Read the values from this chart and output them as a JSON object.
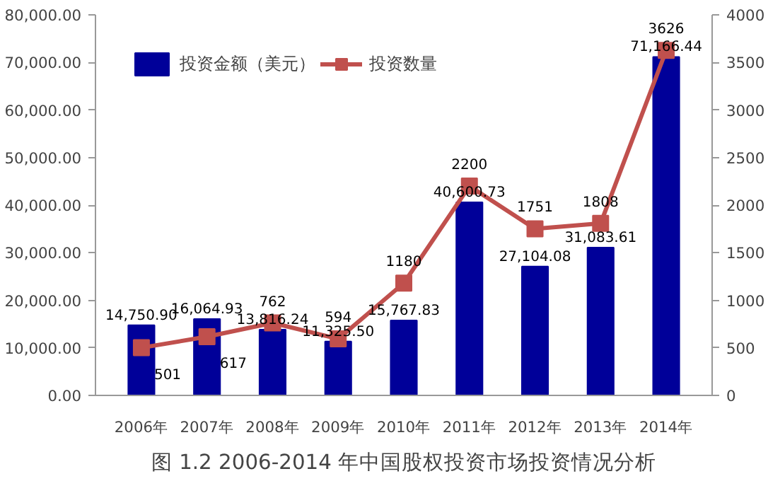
{
  "chart_data": {
    "type": "bar",
    "title": "图 1.2 2006-2014 年中国股权投资市场投资情况分析",
    "categories": [
      "2006年",
      "2007年",
      "2008年",
      "2009年",
      "2010年",
      "2011年",
      "2012年",
      "2013年",
      "2014年"
    ],
    "series": [
      {
        "name": "投资金额（美元）",
        "color": "#000099",
        "values": [
          14750.9,
          16064.93,
          13816.24,
          11325.5,
          15767.83,
          40600.73,
          27104.08,
          31083.61,
          71166.44
        ],
        "value_labels": [
          "14,750.90",
          "16,064.93",
          "13,816.24",
          "11,325.50",
          "15,767.83",
          "40,600.73",
          "27,104.08",
          "31,083.61",
          "71,166.44"
        ]
      },
      {
        "name": "投资数量",
        "type": "line",
        "axis": "y2",
        "color": "#c0504d",
        "marker": "square",
        "values": [
          501,
          617,
          762,
          594,
          1180,
          2200,
          1751,
          1808,
          3626
        ],
        "value_labels": [
          "501",
          "617",
          "762",
          "594",
          "1180",
          "2200",
          "1751",
          "1808",
          "3626"
        ]
      }
    ],
    "ylim": [
      0,
      80000
    ],
    "yticks": [
      {
        "value": 0,
        "label": "0.00"
      },
      {
        "value": 10000,
        "label": "10,000.00"
      },
      {
        "value": 20000,
        "label": "20,000.00"
      },
      {
        "value": 30000,
        "label": "30,000.00"
      },
      {
        "value": 40000,
        "label": "40,000.00"
      },
      {
        "value": 50000,
        "label": "50,000.00"
      },
      {
        "value": 60000,
        "label": "60,000.00"
      },
      {
        "value": 70000,
        "label": "70,000.00"
      },
      {
        "value": 80000,
        "label": "80,000.00"
      }
    ],
    "y2lim": [
      0,
      4000
    ],
    "y2ticks": [
      0,
      500,
      1000,
      1500,
      2000,
      2500,
      3000,
      3500,
      4000
    ],
    "grid": false,
    "legend": "top left"
  }
}
